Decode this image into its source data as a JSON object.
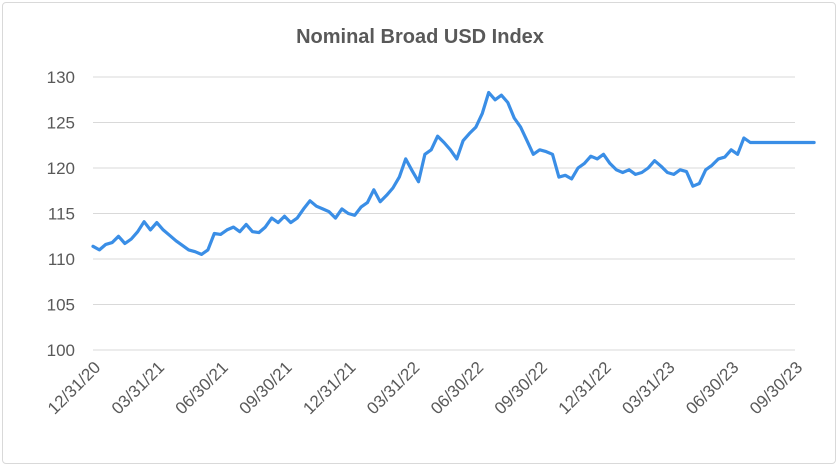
{
  "chart_data": {
    "type": "line",
    "title": "Nominal Broad USD Index",
    "xlabel": "",
    "ylabel": "",
    "ylim": [
      100,
      130
    ],
    "yticks": [
      "100",
      "105",
      "110",
      "115",
      "120",
      "125",
      "130"
    ],
    "xticks": [
      "12/31/20",
      "03/31/21",
      "06/30/21",
      "09/30/21",
      "12/31/21",
      "03/31/22",
      "06/30/22",
      "09/30/22",
      "12/31/22",
      "03/31/23",
      "06/30/23",
      "09/30/23"
    ],
    "grid": true,
    "legend": "none",
    "colors": {
      "line": "#3a8ee6",
      "grid": "#d9d9d9",
      "text": "#595959"
    },
    "series": [
      {
        "x": [
          0,
          0.1,
          0.2,
          0.3,
          0.4,
          0.5,
          0.6,
          0.7,
          0.8,
          0.9,
          1.0,
          1.1,
          1.2,
          1.3,
          1.4,
          1.5,
          1.6,
          1.7,
          1.8,
          1.9,
          2.0,
          2.1,
          2.2,
          2.3,
          2.4,
          2.5,
          2.6,
          2.7,
          2.8,
          2.9,
          3.0,
          3.1,
          3.2,
          3.3,
          3.4,
          3.5,
          3.6,
          3.7,
          3.8,
          3.9,
          4.0,
          4.1,
          4.2,
          4.3,
          4.4,
          4.5,
          4.6,
          4.7,
          4.8,
          4.9,
          5.0,
          5.1,
          5.2,
          5.3,
          5.4,
          5.5,
          5.6,
          5.7,
          5.8,
          5.9,
          6.0,
          6.1,
          6.2,
          6.3,
          6.4,
          6.5,
          6.6,
          6.7,
          6.8,
          6.9,
          7.0,
          7.1,
          7.2,
          7.3,
          7.4,
          7.5,
          7.6,
          7.7,
          7.8,
          7.9,
          8.0,
          8.1,
          8.2,
          8.3,
          8.4,
          8.5,
          8.6,
          8.7,
          8.8,
          8.9,
          9.0,
          9.1,
          9.2,
          9.3,
          9.4,
          9.5,
          9.6,
          9.7,
          9.8,
          9.9,
          10.0,
          10.1,
          10.2,
          10.3,
          10.4,
          10.5,
          10.6,
          10.7,
          10.8,
          10.9,
          11.0,
          11.1,
          11.2,
          11.3
        ],
        "values": [
          111.4,
          111.0,
          111.6,
          111.8,
          112.5,
          111.7,
          112.2,
          113.0,
          114.1,
          113.2,
          114.0,
          113.2,
          112.6,
          112.0,
          111.5,
          111.0,
          110.8,
          110.5,
          111.0,
          112.8,
          112.7,
          113.2,
          113.5,
          113.0,
          113.8,
          113.0,
          112.9,
          113.5,
          114.5,
          114.0,
          114.7,
          114.0,
          114.5,
          115.5,
          116.4,
          115.8,
          115.5,
          115.2,
          114.5,
          115.5,
          115.0,
          114.8,
          115.7,
          116.2,
          117.6,
          116.3,
          117.0,
          117.8,
          119.0,
          121.0,
          119.7,
          118.5,
          121.5,
          122.0,
          123.5,
          122.8,
          122.0,
          121.0,
          123.0,
          123.8,
          124.5,
          126.0,
          128.3,
          127.5,
          128.0,
          127.2,
          125.5,
          124.5,
          123.0,
          121.5,
          122.0,
          121.8,
          121.5,
          119.0,
          119.2,
          118.8,
          120.0,
          120.5,
          121.3,
          121.0,
          121.5,
          120.5,
          119.8,
          119.5,
          119.8,
          119.3,
          119.5,
          120.0,
          120.8,
          120.2,
          119.5,
          119.3,
          119.8,
          119.6,
          118.0,
          118.3,
          119.8,
          120.3,
          121.0,
          121.2,
          122.0,
          121.5,
          123.3,
          122.8,
          122.8,
          122.8,
          122.8,
          122.8,
          122.8,
          122.8,
          122.8,
          122.8,
          122.8,
          122.8
        ]
      }
    ]
  }
}
